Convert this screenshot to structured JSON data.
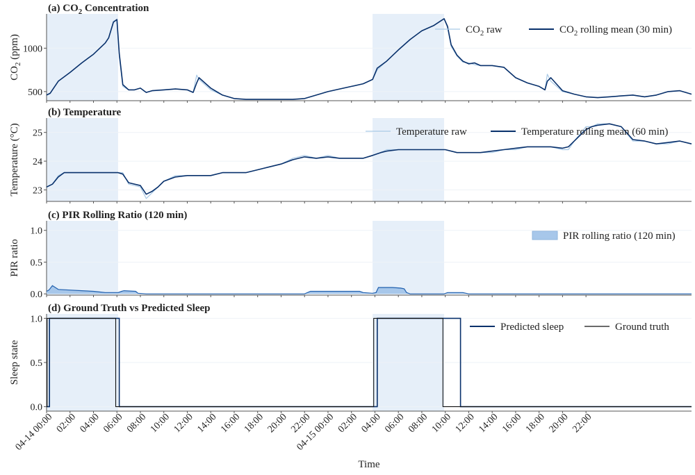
{
  "figure": {
    "x_axis_label": "Time",
    "x_ticks": [
      "04-14 00:00",
      "02:00",
      "04:00",
      "06:00",
      "08:00",
      "10:00",
      "12:00",
      "14:00",
      "16:00",
      "18:00",
      "20:00",
      "22:00",
      "04-15 00:00",
      "02:00",
      "04:00",
      "06:00",
      "08:00",
      "10:00",
      "12:00",
      "14:00",
      "16:00",
      "18:00",
      "20:00",
      "22:00"
    ],
    "sleep_bands_hours": [
      [
        0.0,
        6.1
      ],
      [
        27.8,
        33.9
      ]
    ]
  },
  "colors": {
    "sleep_band": "#e6eff9",
    "raw_line": "#a9c9e6",
    "mean_line": "#08306b",
    "pir_fill": "#a7c7ea",
    "pir_line": "#1f5fae",
    "ground_truth": "#111111",
    "axis": "#555555",
    "grid": "#eef2f7"
  },
  "chart_data": [
    {
      "type": "line",
      "title_prefix": "(a) CO",
      "title_sub": "2",
      "title_suffix": " Concentration",
      "ylabel_prefix": "CO",
      "ylabel_sub": "2",
      "ylabel_suffix": " (ppm)",
      "ylim": [
        395,
        1395
      ],
      "yticks": [
        "500",
        "1000"
      ],
      "ytick_values": [
        500,
        1000
      ],
      "legend": [
        {
          "label_prefix": "CO",
          "label_sub": "2",
          "label_suffix": " raw",
          "style": "raw"
        },
        {
          "label_prefix": "CO",
          "label_sub": "2",
          "label_suffix": " rolling mean (30 min)",
          "style": "mean"
        }
      ],
      "series": [
        {
          "name": "CO2 raw",
          "x": [
            0,
            0.3,
            1,
            2,
            3,
            4,
            5,
            5.3,
            5.7,
            6.0,
            6.2,
            6.5,
            7,
            7.5,
            8,
            8.5,
            9,
            10,
            11,
            12,
            12.5,
            12.8,
            13,
            14,
            15,
            16,
            17,
            18,
            19,
            20,
            21,
            22,
            23,
            24,
            25,
            26,
            27,
            27.8,
            28.2,
            29,
            30,
            31,
            32,
            33,
            33.9,
            34.2,
            34.5,
            35,
            35.5,
            36,
            36.5,
            37,
            38,
            39,
            40,
            41,
            42,
            42.5,
            42.7,
            43,
            44,
            45,
            46,
            47,
            48,
            49,
            50,
            51,
            52,
            53,
            54,
            55
          ],
          "y": [
            460,
            480,
            620,
            720,
            830,
            930,
            1060,
            1120,
            1310,
            1330,
            900,
            560,
            520,
            520,
            540,
            490,
            510,
            520,
            530,
            520,
            490,
            690,
            640,
            520,
            460,
            420,
            410,
            410,
            410,
            410,
            410,
            420,
            460,
            500,
            530,
            560,
            590,
            640,
            750,
            850,
            980,
            1100,
            1200,
            1260,
            1340,
            1230,
            1020,
            910,
            840,
            830,
            810,
            800,
            800,
            780,
            660,
            600,
            560,
            520,
            700,
            620,
            500,
            470,
            440,
            430,
            440,
            450,
            460,
            440,
            460,
            500,
            510,
            470
          ]
        },
        {
          "name": "CO2 rolling mean (30 min)",
          "x": [
            0,
            0.3,
            1,
            2,
            3,
            4,
            5,
            5.3,
            5.7,
            6.0,
            6.2,
            6.5,
            7,
            7.5,
            8,
            8.5,
            9,
            10,
            11,
            12,
            12.5,
            12.8,
            13,
            14,
            15,
            16,
            17,
            18,
            19,
            20,
            21,
            22,
            23,
            24,
            25,
            26,
            27,
            27.8,
            28.2,
            29,
            30,
            31,
            32,
            33,
            33.9,
            34.2,
            34.5,
            35,
            35.5,
            36,
            36.5,
            37,
            38,
            39,
            40,
            41,
            42,
            42.5,
            42.7,
            43,
            44,
            45,
            46,
            47,
            48,
            49,
            50,
            51,
            52,
            53,
            54,
            55
          ],
          "y": [
            460,
            480,
            620,
            720,
            830,
            930,
            1060,
            1120,
            1300,
            1330,
            940,
            580,
            520,
            520,
            540,
            490,
            510,
            520,
            530,
            520,
            490,
            600,
            660,
            540,
            460,
            420,
            410,
            410,
            410,
            410,
            410,
            420,
            460,
            500,
            530,
            560,
            590,
            640,
            770,
            850,
            980,
            1100,
            1200,
            1260,
            1340,
            1250,
            1040,
            920,
            850,
            820,
            830,
            800,
            800,
            780,
            660,
            600,
            560,
            520,
            620,
            660,
            510,
            470,
            440,
            430,
            440,
            450,
            460,
            440,
            460,
            500,
            510,
            470
          ]
        }
      ]
    },
    {
      "type": "line",
      "title": "(b) Temperature",
      "ylabel": "Temperature (°C)",
      "ylim": [
        22.6,
        25.5
      ],
      "yticks": [
        "23",
        "24",
        "25"
      ],
      "ytick_values": [
        23,
        24,
        25
      ],
      "legend": [
        {
          "label": "Temperature raw",
          "style": "raw"
        },
        {
          "label": "Temperature rolling mean (60 min)",
          "style": "mean"
        }
      ],
      "series": [
        {
          "name": "Temperature raw",
          "x": [
            0,
            0.5,
            1,
            1.5,
            2,
            3,
            4,
            5,
            6.1,
            6.5,
            7,
            8,
            8.5,
            9,
            9.5,
            10,
            11,
            12,
            13,
            14,
            15,
            16,
            17,
            18,
            19,
            20,
            21,
            22,
            23,
            24,
            25,
            26,
            27,
            27.8,
            28.5,
            29,
            30,
            31,
            32,
            33,
            34,
            35,
            36,
            37,
            38,
            39,
            40,
            41,
            42,
            42.5,
            43,
            44,
            44.5,
            45,
            46,
            46.5,
            47,
            48,
            49,
            50,
            51,
            52,
            53,
            54,
            55
          ],
          "y": [
            23.1,
            23.2,
            23.5,
            23.6,
            23.6,
            23.6,
            23.6,
            23.6,
            23.6,
            23.6,
            23.2,
            23.1,
            22.7,
            22.9,
            23.1,
            23.3,
            23.5,
            23.5,
            23.5,
            23.5,
            23.6,
            23.6,
            23.6,
            23.7,
            23.8,
            23.9,
            24.1,
            24.2,
            24.1,
            24.2,
            24.1,
            24.1,
            24.1,
            24.2,
            24.3,
            24.4,
            24.4,
            24.4,
            24.4,
            24.4,
            24.4,
            24.3,
            24.3,
            24.3,
            24.3,
            24.4,
            24.4,
            24.5,
            24.5,
            24.5,
            24.5,
            24.4,
            24.4,
            24.7,
            25.2,
            25.2,
            25.3,
            25.3,
            25.2,
            24.7,
            24.7,
            24.6,
            24.6,
            24.7,
            24.6
          ]
        },
        {
          "name": "Temperature rolling mean (60 min)",
          "x": [
            0,
            0.5,
            1,
            1.5,
            2,
            3,
            4,
            5,
            6.1,
            6.5,
            7,
            8,
            8.5,
            9,
            9.5,
            10,
            11,
            12,
            13,
            14,
            15,
            16,
            17,
            18,
            19,
            20,
            21,
            22,
            23,
            24,
            25,
            26,
            27,
            27.8,
            28.5,
            29,
            30,
            31,
            32,
            33,
            34,
            35,
            36,
            37,
            38,
            39,
            40,
            41,
            42,
            42.5,
            43,
            44,
            44.5,
            45,
            46,
            46.5,
            47,
            48,
            49,
            50,
            51,
            52,
            53,
            54,
            55
          ],
          "y": [
            23.1,
            23.2,
            23.45,
            23.6,
            23.6,
            23.6,
            23.6,
            23.6,
            23.6,
            23.55,
            23.25,
            23.15,
            22.85,
            22.95,
            23.1,
            23.3,
            23.45,
            23.5,
            23.5,
            23.5,
            23.6,
            23.6,
            23.6,
            23.7,
            23.8,
            23.9,
            24.05,
            24.15,
            24.1,
            24.15,
            24.1,
            24.1,
            24.1,
            24.2,
            24.3,
            24.35,
            24.4,
            24.4,
            24.4,
            24.4,
            24.4,
            24.3,
            24.3,
            24.3,
            24.35,
            24.4,
            24.45,
            24.5,
            24.5,
            24.5,
            24.5,
            24.45,
            24.5,
            24.7,
            25.1,
            25.2,
            25.25,
            25.3,
            25.2,
            24.75,
            24.7,
            24.6,
            24.65,
            24.7,
            24.6
          ]
        }
      ]
    },
    {
      "type": "area",
      "title": "(c) PIR Rolling Ratio (120 min)",
      "ylabel": "PIR ratio",
      "ylim": [
        -0.02,
        1.15
      ],
      "yticks": [
        "0.0",
        "0.5",
        "1.0"
      ],
      "ytick_values": [
        0,
        0.5,
        1
      ],
      "legend": [
        {
          "label": "PIR rolling ratio (120 min)",
          "style": "area"
        }
      ],
      "series": [
        {
          "name": "PIR rolling ratio (120 min)",
          "x": [
            0,
            0.2,
            0.5,
            1,
            2,
            3,
            4,
            4.5,
            5,
            6.0,
            6.1,
            6.4,
            6.6,
            7.6,
            7.8,
            8.5,
            20,
            20.5,
            21,
            22,
            22.5,
            22.7,
            26.7,
            27,
            27.8,
            28.1,
            28.3,
            29.5,
            30.2,
            30.5,
            30.7,
            31,
            33,
            33.9,
            34.2,
            35,
            35.5,
            36,
            55
          ],
          "y": [
            0.04,
            0.06,
            0.13,
            0.07,
            0.06,
            0.05,
            0.04,
            0.03,
            0.02,
            0.02,
            0.02,
            0.04,
            0.05,
            0.04,
            0.01,
            0,
            0,
            0,
            0,
            0,
            0.04,
            0.04,
            0.04,
            0.02,
            0.01,
            0.02,
            0.1,
            0.1,
            0.09,
            0.08,
            0.02,
            0,
            0,
            0,
            0.02,
            0.02,
            0.02,
            0,
            0
          ]
        }
      ]
    },
    {
      "type": "line",
      "title": "(d) Ground Truth vs Predicted Sleep",
      "ylabel": "Sleep state",
      "ylim": [
        -0.05,
        1.05
      ],
      "yticks": [
        "0.0",
        "0.5",
        "1.0"
      ],
      "ytick_values": [
        0,
        0.5,
        1
      ],
      "legend": [
        {
          "label": "Predicted sleep",
          "style": "mean"
        },
        {
          "label": "Ground truth",
          "style": "gt"
        }
      ],
      "series": [
        {
          "name": "Predicted sleep",
          "steps": [
            [
              0,
              0
            ],
            [
              0.25,
              1
            ],
            [
              6.2,
              0
            ],
            [
              28.2,
              1
            ],
            [
              35.3,
              0
            ],
            [
              55,
              0
            ]
          ]
        },
        {
          "name": "Ground truth",
          "steps": [
            [
              0,
              0
            ],
            [
              0.05,
              1
            ],
            [
              5.9,
              0
            ],
            [
              27.9,
              1
            ],
            [
              33.8,
              0
            ],
            [
              55,
              0
            ]
          ]
        }
      ]
    }
  ]
}
